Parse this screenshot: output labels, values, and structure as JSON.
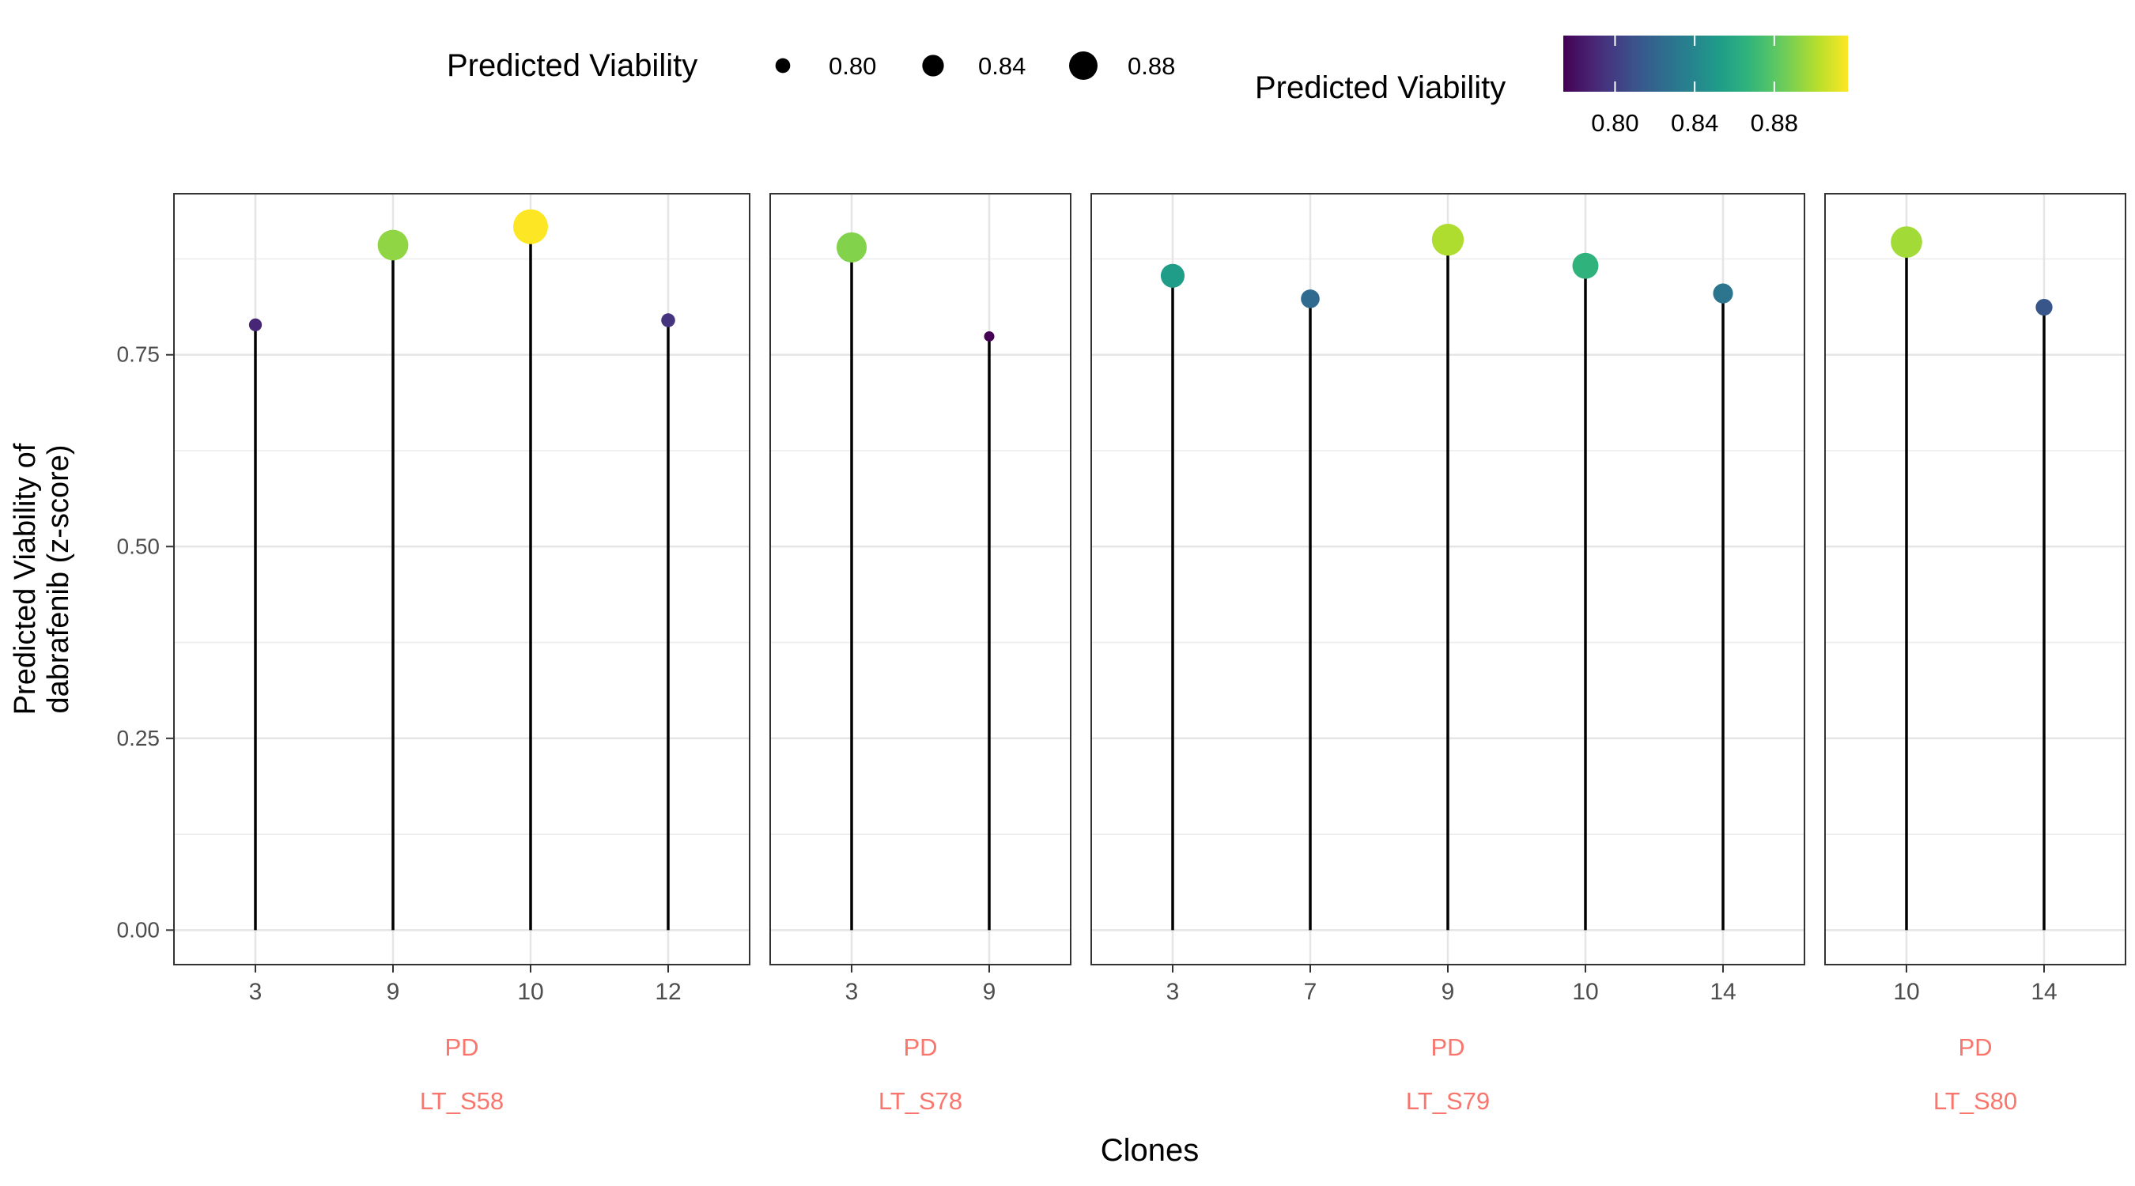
{
  "chart_data": {
    "type": "lollipop",
    "ylabel_lines": [
      "Predicted Viability of",
      "dabrafenib (z-score)"
    ],
    "xlabel": "Clones",
    "ylim": [
      -0.045,
      0.96
    ],
    "y_ticks": [
      0.0,
      0.25,
      0.5,
      0.75
    ],
    "y_tick_labels": [
      "0.00",
      "0.25",
      "0.50",
      "0.75"
    ],
    "grid": true,
    "panels": [
      {
        "strip_top": "PD",
        "strip_bottom": "LT_S58",
        "categories": [
          "3",
          "9",
          "10",
          "12"
        ],
        "values": [
          0.789,
          0.893,
          0.917,
          0.795
        ]
      },
      {
        "strip_top": "PD",
        "strip_bottom": "LT_S78",
        "categories": [
          "3",
          "9"
        ],
        "values": [
          0.89,
          0.774
        ]
      },
      {
        "strip_top": "PD",
        "strip_bottom": "LT_S79",
        "categories": [
          "3",
          "7",
          "9",
          "10",
          "14"
        ],
        "values": [
          0.853,
          0.823,
          0.9,
          0.866,
          0.83
        ]
      },
      {
        "strip_top": "PD",
        "strip_bottom": "LT_S80",
        "categories": [
          "10",
          "14"
        ],
        "values": [
          0.897,
          0.812
        ]
      }
    ],
    "legend": {
      "position": "top",
      "size_title": "Predicted Viability",
      "size_breaks": [
        0.8,
        0.84,
        0.88
      ],
      "size_labels": [
        "0.80",
        "0.84",
        "0.88"
      ],
      "color_title": "Predicted Viability",
      "color_breaks": [
        0.8,
        0.84,
        0.88
      ],
      "color_labels": [
        "0.80",
        "0.84",
        "0.88"
      ],
      "value_range": [
        0.774,
        0.917
      ]
    },
    "colors": {
      "stem": "#000000",
      "strip_text": "#F8766D",
      "viridis": [
        "#440154",
        "#482878",
        "#3E4A89",
        "#31688E",
        "#26828E",
        "#1F9E89",
        "#35B779",
        "#6DCD59",
        "#B4DE2C",
        "#FDE725"
      ]
    }
  }
}
